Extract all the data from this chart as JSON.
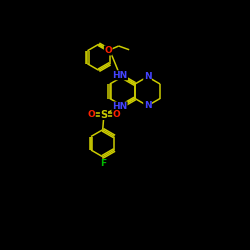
{
  "background": "#000000",
  "bond_color": "#cccc00",
  "atom_colors": {
    "N": "#4444ff",
    "O": "#ff2200",
    "S": "#cccc00",
    "F": "#00bb00",
    "C": "#cccc00"
  },
  "lw": 1.1,
  "fontsize": 7.5
}
